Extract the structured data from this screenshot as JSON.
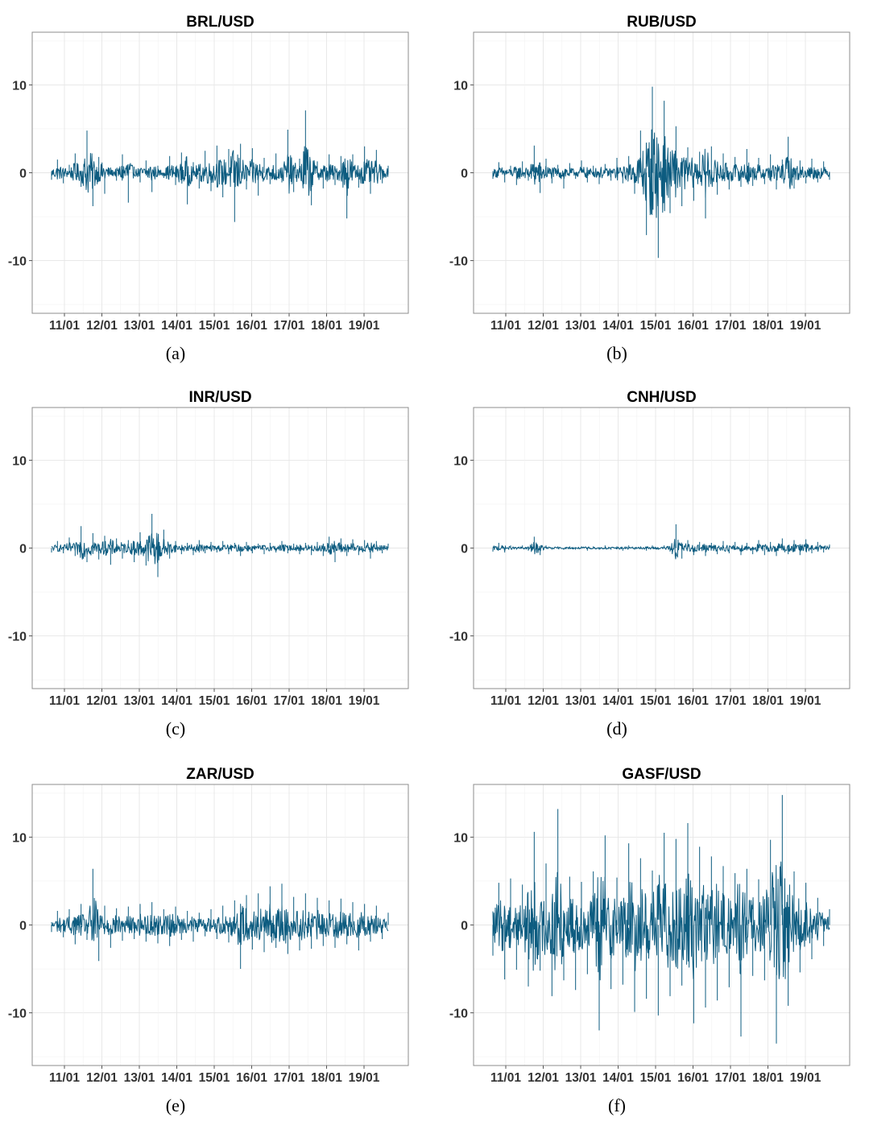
{
  "chart_data": [
    {
      "type": "line",
      "title": "BRL/USD",
      "caption": "(a)",
      "x_ticks": [
        "11/01",
        "12/01",
        "13/01",
        "14/01",
        "15/01",
        "16/01",
        "17/01",
        "18/01",
        "19/01"
      ],
      "y_ticks": [
        "10",
        "0",
        "-10"
      ],
      "ylim": [
        -16,
        16
      ],
      "grid": true,
      "series_color": "#0d5c80",
      "series": [
        {
          "values": [
            -0.8,
            1.5,
            -1.2,
            0.9,
            2.2,
            -1.6,
            4.8,
            -3.8,
            1.8,
            -2.4,
            0.6,
            -0.9,
            2.1,
            -3.4,
            0.7,
            -1.1,
            1.4,
            -2.2,
            0.8,
            -0.6,
            1.9,
            -1.4,
            2.3,
            -3.6,
            1.2,
            -1.8,
            2.5,
            -2.1,
            3.1,
            -2.8,
            2.7,
            -5.6,
            3.3,
            -1.9,
            2.8,
            -2.6,
            1.7,
            -1.3,
            2.2,
            -1.1,
            4.9,
            -2.2,
            1.6,
            7.1,
            -3.7,
            1.3,
            -1.8,
            2.1,
            -1.4,
            1.9,
            -5.2,
            2.1,
            -1.7,
            3.0,
            -2.4,
            2.6,
            -1.2,
            0.8
          ]
        }
      ]
    },
    {
      "type": "line",
      "title": "RUB/USD",
      "caption": "(b)",
      "x_ticks": [
        "11/01",
        "12/01",
        "13/01",
        "14/01",
        "15/01",
        "16/01",
        "17/01",
        "18/01",
        "19/01"
      ],
      "y_ticks": [
        "10",
        "0",
        "-10"
      ],
      "ylim": [
        -16,
        16
      ],
      "grid": true,
      "series_color": "#0d5c80",
      "series": [
        {
          "values": [
            -0.7,
            1.2,
            -1.1,
            0.8,
            -1.4,
            1.3,
            -0.9,
            3.1,
            -2.3,
            1.6,
            -1.2,
            0.9,
            -1.8,
            1.1,
            -0.7,
            1.4,
            -1.1,
            0.8,
            -1.3,
            1.0,
            -0.9,
            1.7,
            -1.2,
            1.9,
            -2.4,
            4.8,
            -7.1,
            9.8,
            -9.7,
            8.2,
            -4.6,
            5.3,
            -3.8,
            2.9,
            -3.2,
            2.4,
            -5.2,
            3.0,
            -2.5,
            2.2,
            -1.9,
            1.8,
            -1.6,
            2.7,
            -1.5,
            1.7,
            -1.3,
            2.1,
            -1.9,
            1.5,
            4.1,
            -1.8,
            1.4,
            -1.2,
            1.6,
            -1.1,
            1.3,
            -0.8
          ]
        }
      ]
    },
    {
      "type": "line",
      "title": "INR/USD",
      "caption": "(c)",
      "x_ticks": [
        "11/01",
        "12/01",
        "13/01",
        "14/01",
        "15/01",
        "16/01",
        "17/01",
        "18/01",
        "19/01"
      ],
      "y_ticks": [
        "10",
        "0",
        "-10"
      ],
      "ylim": [
        -16,
        16
      ],
      "grid": true,
      "series_color": "#0d5c80",
      "series": [
        {
          "values": [
            -0.5,
            0.8,
            -0.6,
            1.2,
            -0.9,
            2.5,
            -1.6,
            1.7,
            -1.3,
            1.4,
            -1.9,
            1.1,
            -1.2,
            0.9,
            -1.6,
            1.8,
            -2.0,
            3.9,
            -3.3,
            2.1,
            -1.2,
            0.8,
            -0.7,
            0.6,
            -0.8,
            0.9,
            -0.6,
            0.7,
            -0.5,
            0.8,
            -0.7,
            0.6,
            -0.9,
            0.7,
            -0.6,
            0.5,
            -0.7,
            0.6,
            -0.5,
            0.8,
            -0.6,
            0.5,
            -0.7,
            0.6,
            -0.8,
            0.7,
            -0.9,
            1.3,
            -1.6,
            1.1,
            -0.9,
            1.0,
            -0.8,
            0.9,
            -1.2,
            0.8,
            -0.6,
            0.5
          ]
        }
      ]
    },
    {
      "type": "line",
      "title": "CNH/USD",
      "caption": "(d)",
      "x_ticks": [
        "11/01",
        "12/01",
        "13/01",
        "14/01",
        "15/01",
        "16/01",
        "17/01",
        "18/01",
        "19/01"
      ],
      "y_ticks": [
        "10",
        "0",
        "-10"
      ],
      "ylim": [
        -16,
        16
      ],
      "grid": true,
      "series_color": "#0d5c80",
      "series": [
        {
          "values": [
            -0.4,
            0.6,
            -0.5,
            0.3,
            -0.2,
            0.3,
            -0.3,
            1.3,
            -0.8,
            0.3,
            -0.2,
            0.2,
            -0.2,
            0.2,
            -0.2,
            0.2,
            -0.3,
            0.2,
            -0.2,
            0.3,
            -0.2,
            0.2,
            -0.3,
            0.3,
            -0.2,
            0.2,
            -0.3,
            0.3,
            -0.2,
            0.3,
            -0.4,
            2.7,
            -1.2,
            0.9,
            -0.8,
            0.7,
            -0.9,
            0.6,
            -0.7,
            0.8,
            -0.6,
            0.7,
            -0.8,
            0.6,
            -0.7,
            0.9,
            -0.8,
            0.7,
            -0.9,
            1.1,
            -0.7,
            0.9,
            -0.8,
            1.0,
            -0.6,
            0.7,
            -0.5,
            0.4
          ]
        }
      ]
    },
    {
      "type": "line",
      "title": "ZAR/USD",
      "caption": "(e)",
      "x_ticks": [
        "11/01",
        "12/01",
        "13/01",
        "14/01",
        "15/01",
        "16/01",
        "17/01",
        "18/01",
        "19/01"
      ],
      "y_ticks": [
        "10",
        "0",
        "-10"
      ],
      "ylim": [
        -16,
        16
      ],
      "grid": true,
      "series_color": "#0d5c80",
      "series": [
        {
          "values": [
            -0.8,
            1.6,
            -1.4,
            1.8,
            -2.2,
            2.4,
            -1.7,
            6.4,
            -4.1,
            2.2,
            -2.6,
            1.9,
            -1.8,
            2.1,
            -1.6,
            2.4,
            -1.9,
            2.6,
            -2.1,
            1.8,
            -2.4,
            2.1,
            -1.7,
            1.6,
            -1.9,
            1.4,
            -1.3,
            1.8,
            -1.6,
            2.2,
            -2.0,
            2.8,
            -5.0,
            3.4,
            -2.8,
            3.6,
            -3.1,
            4.4,
            -2.6,
            4.7,
            -3.3,
            3.2,
            -2.9,
            3.6,
            -2.7,
            3.1,
            -2.4,
            2.8,
            -2.6,
            3.0,
            -2.2,
            2.6,
            -2.9,
            2.4,
            -1.9,
            2.2,
            -1.6,
            1.4
          ]
        }
      ]
    },
    {
      "type": "line",
      "title": "GASF/USD",
      "caption": "(f)",
      "x_ticks": [
        "11/01",
        "12/01",
        "13/01",
        "14/01",
        "15/01",
        "16/01",
        "17/01",
        "18/01",
        "19/01"
      ],
      "y_ticks": [
        "10",
        "0",
        "-10"
      ],
      "ylim": [
        -16,
        16
      ],
      "grid": true,
      "series_color": "#0d5c80",
      "series": [
        {
          "values": [
            -3.5,
            4.8,
            -6.2,
            5.3,
            -5.1,
            4.6,
            -7.0,
            10.6,
            -5.2,
            7.0,
            -8.1,
            13.2,
            -6.3,
            5.5,
            -7.4,
            4.9,
            -5.6,
            6.1,
            -12.0,
            10.2,
            -7.3,
            5.4,
            -6.8,
            9.3,
            -9.9,
            7.6,
            -8.4,
            6.2,
            -10.3,
            10.5,
            -8.1,
            9.8,
            -6.9,
            11.6,
            -11.2,
            8.9,
            -9.4,
            7.8,
            -8.6,
            6.7,
            -7.1,
            5.9,
            -12.7,
            6.4,
            -5.8,
            5.2,
            -6.3,
            9.7,
            -13.5,
            14.8,
            -9.2,
            6.1,
            -5.4,
            4.8,
            -3.9,
            3.1,
            -2.4,
            1.8
          ]
        }
      ]
    }
  ]
}
